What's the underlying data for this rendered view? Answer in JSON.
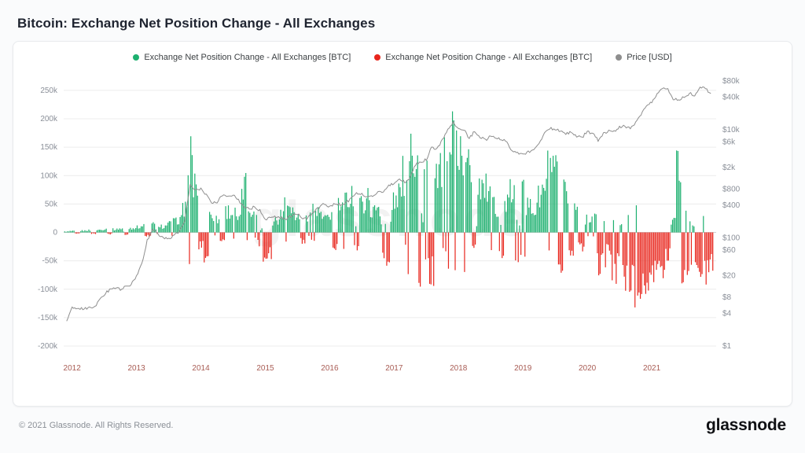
{
  "page": {
    "title": "Bitcoin: Exchange Net Position Change - All Exchanges",
    "footer_copyright": "© 2021 Glassnode. All Rights Reserved.",
    "brand_wordmark": "glassnode",
    "watermark": "glassnode"
  },
  "legend": [
    {
      "label": "Exchange Net Position Change - All Exchanges [BTC]",
      "color": "#1db06f"
    },
    {
      "label": "Exchange Net Position Change - All Exchanges [BTC]",
      "color": "#e8261d"
    },
    {
      "label": "Price [USD]",
      "color": "#8e8e8e"
    }
  ],
  "colors": {
    "grid": "#ececec",
    "zero_line": "#d0d0d0",
    "axis_tick": "#8a8f98",
    "x_tick": "#a85c54",
    "bar_positive": "#1db06f",
    "bar_negative": "#e8261d",
    "price_line": "#8e8e8e",
    "watermark": "#000000"
  },
  "chart_data": {
    "type": "bar",
    "title": "Bitcoin: Exchange Net Position Change - All Exchanges",
    "grid": true,
    "legend_position": "top-center",
    "x_axis": {
      "start_year": 2011.9167,
      "points_per_year": 12,
      "range": [
        2011.87,
        2022.0
      ],
      "tick_years": [
        2012,
        2013,
        2014,
        2015,
        2016,
        2017,
        2018,
        2019,
        2020,
        2021
      ]
    },
    "left_axis": {
      "scale": "linear",
      "range": [
        -218000,
        272000
      ],
      "tick_values": [
        250000,
        200000,
        150000,
        100000,
        50000,
        0,
        -50000,
        -100000,
        -150000,
        -200000
      ],
      "tick_labels": [
        "250k",
        "200k",
        "150k",
        "100k",
        "50k",
        "0",
        "-50k",
        "-100k",
        "-150k",
        "-200k"
      ]
    },
    "right_axis": {
      "scale": "log",
      "range": [
        1,
        80000
      ],
      "tick_values": [
        80000,
        40000,
        10000,
        6000,
        2000,
        800,
        400,
        100,
        60,
        20,
        8,
        4,
        1
      ],
      "tick_labels": [
        "$80k",
        "$40k",
        "$10k",
        "$6k",
        "$2k",
        "$800",
        "$400",
        "$100",
        "$60",
        "$20",
        "$8",
        "$4",
        "$1"
      ]
    },
    "series": [
      {
        "name": "Exchange Net Position Change - All Exchanges [BTC]",
        "type": "bar",
        "axis": "left",
        "unit": "BTC",
        "color_positive": "#1db06f",
        "color_negative": "#e8261d",
        "values": [
          2000,
          3000,
          -2000,
          4000,
          5000,
          -3000,
          6000,
          8000,
          -4000,
          7000,
          9000,
          -5000,
          10000,
          12000,
          15000,
          -8000,
          18000,
          10000,
          14000,
          20000,
          25000,
          30000,
          60000,
          165000,
          110000,
          -30000,
          -65000,
          40000,
          30000,
          -20000,
          50000,
          45000,
          30000,
          105000,
          60000,
          40000,
          -25000,
          -70000,
          -55000,
          30000,
          45000,
          90000,
          50000,
          35000,
          -20000,
          40000,
          55000,
          45000,
          30000,
          40000,
          -35000,
          60000,
          75000,
          90000,
          -40000,
          65000,
          80000,
          50000,
          60000,
          -55000,
          -65000,
          70000,
          90000,
          130000,
          250000,
          180000,
          -110000,
          150000,
          -90000,
          120000,
          160000,
          190000,
          235000,
          200000,
          190000,
          150000,
          -40000,
          120000,
          100000,
          80000,
          60000,
          -50000,
          70000,
          90000,
          -60000,
          190000,
          60000,
          50000,
          80000,
          100000,
          150000,
          130000,
          -70000,
          90000,
          -50000,
          60000,
          -40000,
          30000,
          35000,
          -80000,
          -60000,
          -40000,
          -90000,
          -70000,
          -100000,
          -110000,
          -130000,
          -160000,
          -120000,
          -90000,
          -70000,
          -80000,
          -60000,
          30000,
          150000,
          -110000,
          -90000,
          -60000,
          -80000,
          -100000,
          -75000
        ]
      },
      {
        "name": "Price [USD]",
        "type": "line",
        "axis": "right",
        "unit": "USD",
        "color": "#8e8e8e",
        "values": [
          3,
          5.3,
          4.9,
          4.9,
          5,
          5.1,
          6.7,
          9,
          11,
          12,
          11,
          12.5,
          13.5,
          20,
          33,
          90,
          140,
          120,
          100,
          95,
          110,
          135,
          200,
          1000,
          750,
          800,
          620,
          450,
          450,
          620,
          600,
          620,
          500,
          380,
          340,
          375,
          320,
          220,
          250,
          245,
          235,
          230,
          260,
          280,
          230,
          235,
          310,
          360,
          430,
          380,
          435,
          415,
          450,
          530,
          670,
          655,
          575,
          610,
          700,
          745,
          960,
          970,
          1190,
          1080,
          1350,
          2300,
          2500,
          2870,
          4700,
          4350,
          6450,
          10000,
          14000,
          10200,
          10300,
          7000,
          9250,
          7500,
          6400,
          7750,
          7000,
          6600,
          6300,
          4000,
          3750,
          3440,
          3850,
          4100,
          5350,
          8550,
          10800,
          10000,
          9600,
          8300,
          9150,
          7550,
          7200,
          9350,
          8550,
          6450,
          8650,
          9450,
          9140,
          11350,
          11650,
          10800,
          13800,
          19700,
          29000,
          33100,
          45200,
          58800,
          57750,
          37300,
          35000,
          41500,
          47100,
          43800,
          61300,
          57000,
          47000
        ]
      }
    ]
  }
}
